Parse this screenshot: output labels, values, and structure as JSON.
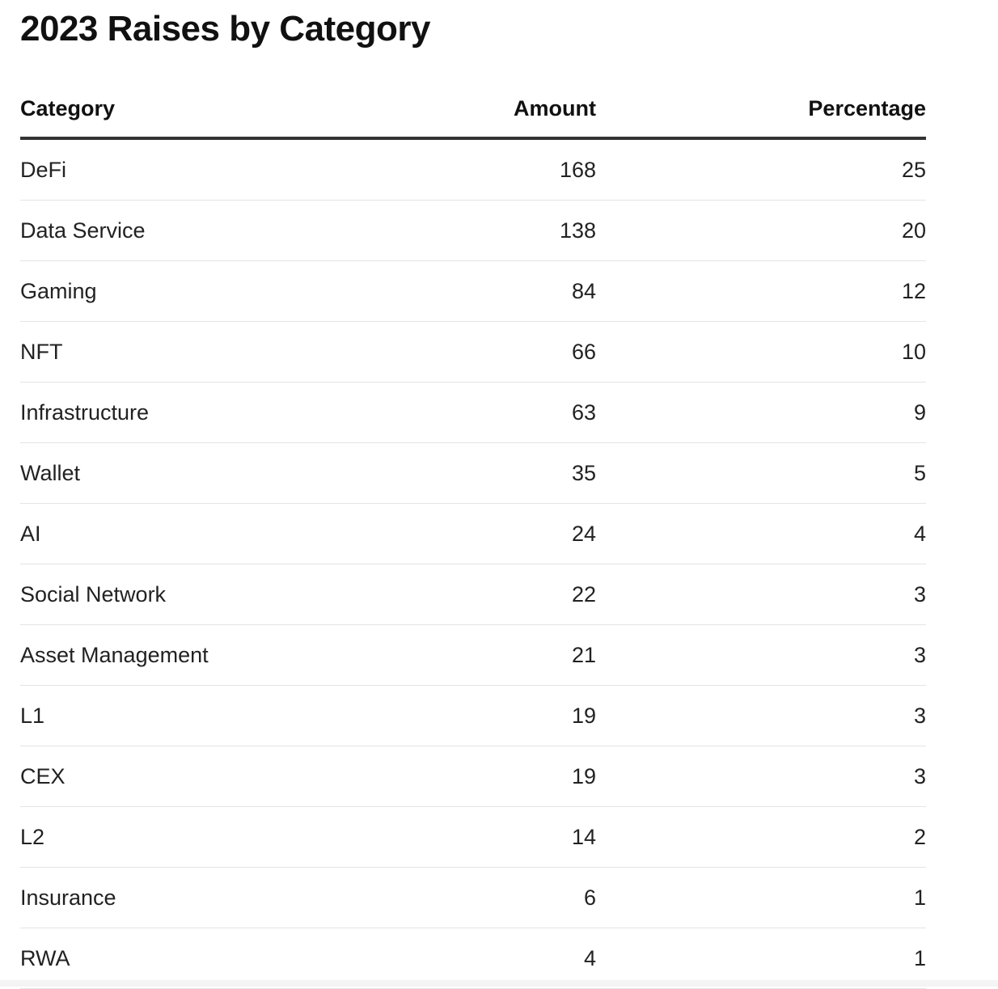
{
  "chart_data": {
    "type": "table",
    "title": "2023 Raises by Category",
    "columns": [
      "Category",
      "Amount",
      "Percentage"
    ],
    "rows": [
      {
        "category": "DeFi",
        "amount": "168",
        "percentage": "25"
      },
      {
        "category": "Data Service",
        "amount": "138",
        "percentage": "20"
      },
      {
        "category": "Gaming",
        "amount": "84",
        "percentage": "12"
      },
      {
        "category": "NFT",
        "amount": "66",
        "percentage": "10"
      },
      {
        "category": "Infrastructure",
        "amount": "63",
        "percentage": "9"
      },
      {
        "category": "Wallet",
        "amount": "35",
        "percentage": "5"
      },
      {
        "category": "AI",
        "amount": "24",
        "percentage": "4"
      },
      {
        "category": "Social Network",
        "amount": "22",
        "percentage": "3"
      },
      {
        "category": "Asset Management",
        "amount": "21",
        "percentage": "3"
      },
      {
        "category": "L1",
        "amount": "19",
        "percentage": "3"
      },
      {
        "category": "CEX",
        "amount": "19",
        "percentage": "3"
      },
      {
        "category": "L2",
        "amount": "14",
        "percentage": "2"
      },
      {
        "category": "Insurance",
        "amount": "6",
        "percentage": "1"
      },
      {
        "category": "RWA",
        "amount": "4",
        "percentage": "1"
      }
    ]
  },
  "colors": {
    "text": "#222222",
    "header_rule": "#333333",
    "row_rule": "#e4e4e4"
  }
}
